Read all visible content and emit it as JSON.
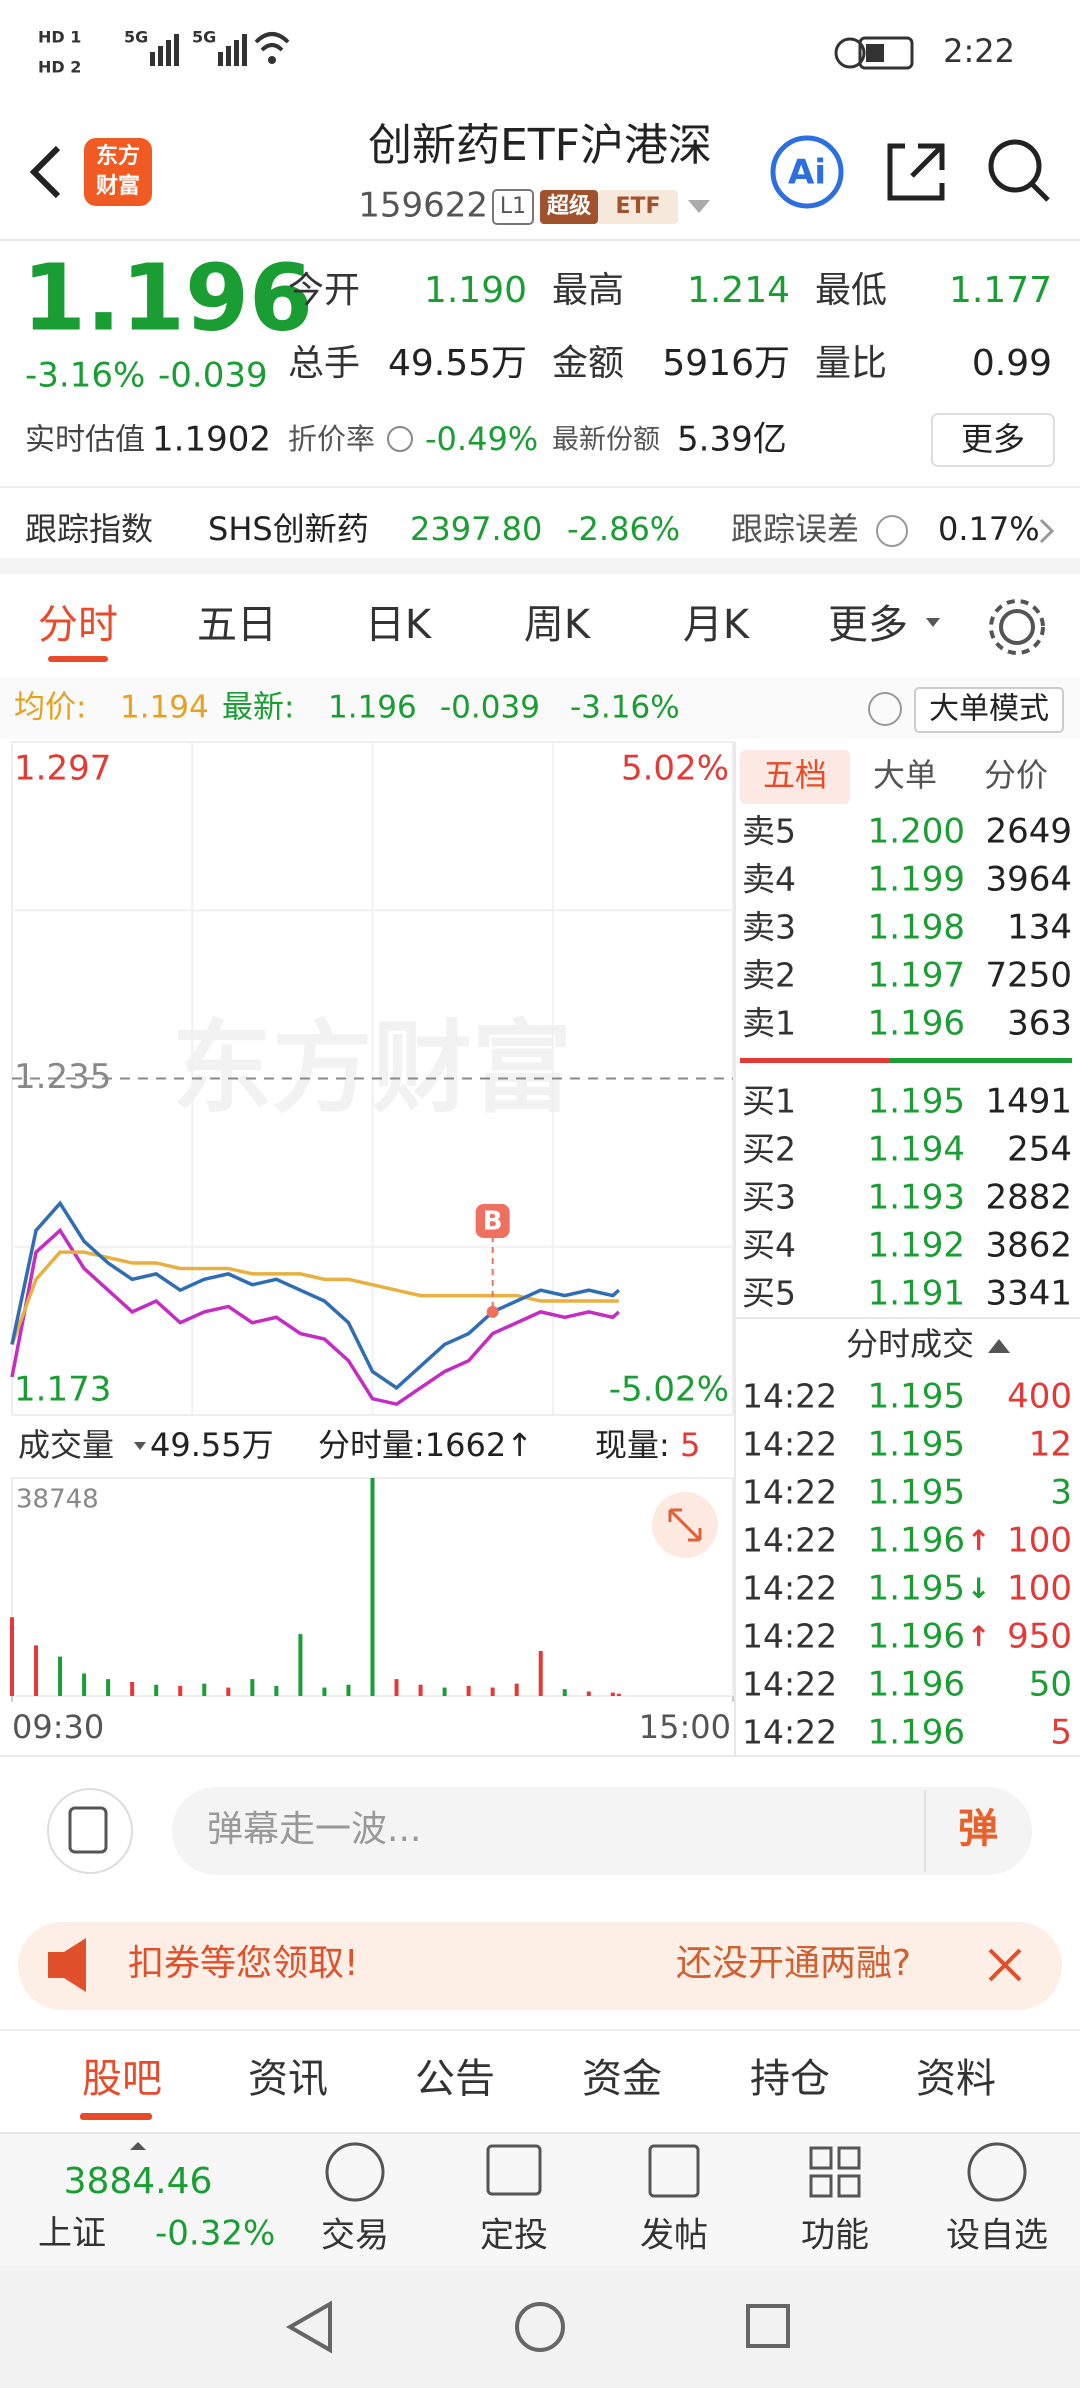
{
  "status_bar": {
    "time": "2:22",
    "sim": [
      "HD 1",
      "HD 2"
    ],
    "network": [
      "5G",
      "5G"
    ]
  },
  "header": {
    "logo": [
      "东方",
      "财富"
    ],
    "title": "创新药ETF沪港深",
    "code": "159622",
    "level": "L1",
    "badges": [
      "超级",
      "ETF"
    ],
    "ai": "Ai"
  },
  "quote": {
    "price": "1.196",
    "change_pct": "-3.16%",
    "change": "-0.039",
    "stats": [
      [
        "今开",
        "1.190"
      ],
      [
        "最高",
        "1.214"
      ],
      [
        "最低",
        "1.177"
      ],
      [
        "总手",
        "49.55万"
      ],
      [
        "金额",
        "5916万"
      ],
      [
        "量比",
        "0.99"
      ]
    ],
    "estimate_label": "实时估值",
    "estimate": "1.1902",
    "discount_label": "折价率",
    "discount": "-0.49%",
    "shares_label": "最新份额",
    "shares": "5.39亿",
    "more": "更多"
  },
  "tracking": {
    "label": "跟踪指数",
    "index": "SHS创新药",
    "value": "2397.80",
    "change": "-2.86%",
    "error_label": "跟踪误差",
    "error": "0.17%"
  },
  "tabs": [
    "分时",
    "五日",
    "日K",
    "周K",
    "月K",
    "更多"
  ],
  "info_bar": {
    "avg_label": "均价:",
    "avg": "1.194",
    "latest_label": "最新:",
    "latest": "1.196",
    "change": "-0.039",
    "change_pct": "-3.16%",
    "mode": "大单模式"
  },
  "chart": {
    "type": "line",
    "watermark": "东方财富",
    "x": [
      0,
      8,
      16,
      24,
      32,
      40,
      48,
      56,
      64,
      72,
      80,
      88,
      96,
      104,
      112,
      120,
      128,
      136,
      144,
      152,
      160,
      168,
      176,
      184,
      192,
      200,
      202
    ],
    "xlim": [
      0,
      240
    ],
    "xticks": [
      {
        "value": 0,
        "label": "09:30"
      },
      {
        "value": 240,
        "label": "15:00"
      }
    ],
    "ylim": [
      1.173,
      1.297
    ],
    "yticks": [
      1.173,
      1.235,
      1.297
    ],
    "pct_labels": [
      "5.02%",
      "-5.02%"
    ],
    "series": [
      {
        "color": "#2f6db5",
        "values": [
          1.186,
          1.207,
          1.212,
          1.205,
          1.201,
          1.198,
          1.199,
          1.196,
          1.198,
          1.199,
          1.197,
          1.198,
          1.196,
          1.194,
          1.19,
          1.181,
          1.178,
          1.182,
          1.186,
          1.188,
          1.192,
          1.194,
          1.196,
          1.195,
          1.196,
          1.195,
          1.196
        ]
      },
      {
        "color": "#e8b040",
        "values": [
          1.186,
          1.198,
          1.203,
          1.203,
          1.202,
          1.201,
          1.201,
          1.2,
          1.2,
          1.2,
          1.199,
          1.199,
          1.199,
          1.198,
          1.198,
          1.197,
          1.196,
          1.195,
          1.195,
          1.195,
          1.195,
          1.195,
          1.194,
          1.194,
          1.194,
          1.194,
          1.194
        ]
      },
      {
        "color": "#c42cc4",
        "values": [
          1.18,
          1.203,
          1.207,
          1.2,
          1.196,
          1.192,
          1.194,
          1.19,
          1.192,
          1.193,
          1.19,
          1.191,
          1.188,
          1.187,
          1.183,
          1.176,
          1.175,
          1.178,
          1.181,
          1.183,
          1.188,
          1.19,
          1.192,
          1.191,
          1.192,
          1.191,
          1.192
        ]
      }
    ],
    "marker": {
      "label": "B",
      "x": 160
    }
  },
  "volume": {
    "type": "bar",
    "label": "成交量",
    "total": "49.55万",
    "period_label": "分时量:1662↑",
    "current_label": "现量:",
    "current": "5",
    "ylim": [
      0,
      38748
    ],
    "yticks": [
      38748
    ],
    "values": [
      14000,
      9000,
      7000,
      4000,
      3000,
      2500,
      2000,
      1800,
      2200,
      1500,
      3000,
      1800,
      11000,
      1500,
      2000,
      38748,
      3000,
      2000,
      1500,
      1800,
      1500,
      2200,
      8000,
      1200,
      800,
      600,
      400
    ],
    "colors": [
      "#e53935",
      "#e53935",
      "#1a9e34",
      "#1a9e34",
      "#1a9e34",
      "#e53935",
      "#1a9e34",
      "#e53935",
      "#1a9e34",
      "#e53935",
      "#1a9e34",
      "#1a9e34",
      "#1a9e34",
      "#1a9e34",
      "#1a9e34",
      "#1a9e34",
      "#e53935",
      "#e53935",
      "#1a9e34",
      "#e53935",
      "#e53935",
      "#e53935",
      "#e53935",
      "#1a9e34",
      "#e53935",
      "#e53935",
      "#e53935"
    ]
  },
  "order_book": {
    "tabs": [
      "五档",
      "大单",
      "分价"
    ],
    "asks": [
      [
        "卖5",
        "1.200",
        "2649"
      ],
      [
        "卖4",
        "1.199",
        "3964"
      ],
      [
        "卖3",
        "1.198",
        "134"
      ],
      [
        "卖2",
        "1.197",
        "7250"
      ],
      [
        "卖1",
        "1.196",
        "363"
      ]
    ],
    "bids": [
      [
        "买1",
        "1.195",
        "1491"
      ],
      [
        "买2",
        "1.194",
        "254"
      ],
      [
        "买3",
        "1.193",
        "2882"
      ],
      [
        "买4",
        "1.192",
        "3862"
      ],
      [
        "买5",
        "1.191",
        "3341"
      ]
    ]
  },
  "trades": {
    "title": "分时成交",
    "rows": [
      {
        "time": "14:22",
        "price": "1.195",
        "volume": "400",
        "color": "#e53935"
      },
      {
        "time": "14:22",
        "price": "1.195",
        "volume": "12",
        "color": "#e53935"
      },
      {
        "time": "14:22",
        "price": "1.195",
        "volume": "3",
        "color": "#1a9e34"
      },
      {
        "time": "14:22",
        "price": "1.196",
        "arrow": "↑",
        "volume": "100",
        "color": "#e53935"
      },
      {
        "time": "14:22",
        "price": "1.195",
        "arrow": "↓",
        "volume": "100",
        "color": "#e53935"
      },
      {
        "time": "14:22",
        "price": "1.196",
        "arrow": "↑",
        "volume": "950",
        "color": "#e53935"
      },
      {
        "time": "14:22",
        "price": "1.196",
        "volume": "50",
        "color": "#1a9e34"
      },
      {
        "time": "14:22",
        "price": "1.196",
        "volume": "5",
        "color": "#e53935"
      }
    ]
  },
  "comment": {
    "placeholder": "弹幕走一波...",
    "button": "弹"
  },
  "banner": {
    "left": "扣券等您领取!",
    "right": "还没开通两融?"
  },
  "bottom_tabs": [
    "股吧",
    "资讯",
    "公告",
    "资金",
    "持仓",
    "资料"
  ],
  "bottom_bar": {
    "index_value": "3884.46",
    "index_name": "上证",
    "index_change": "-0.32%",
    "actions": [
      "交易",
      "定投",
      "发帖",
      "功能",
      "设自选"
    ]
  }
}
